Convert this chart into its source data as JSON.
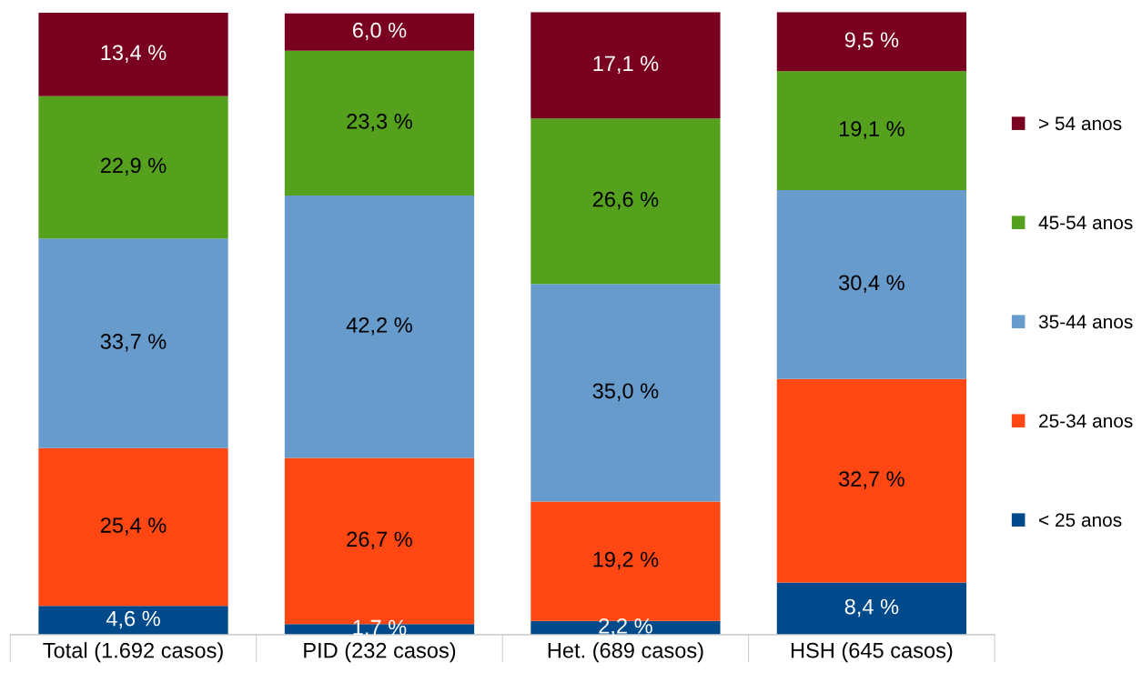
{
  "chart_data": {
    "type": "bar",
    "stacked": true,
    "legend": "right",
    "grid": false,
    "tick_labels": "x",
    "categories": [
      "Total (1.692 casos)",
      "PID (232 casos)",
      "Het. (689 casos)",
      "HSH (645 casos)"
    ],
    "series": [
      {
        "name": "< 25 anos",
        "color": "#004a8c",
        "values": [
          4.6,
          1.7,
          2.2,
          8.4
        ],
        "value_labels": [
          "4,6 %",
          "1,7 %",
          "2,2 %",
          "8,4 %"
        ]
      },
      {
        "name": "25-34 anos",
        "color": "#ff4713",
        "values": [
          25.4,
          26.7,
          19.2,
          32.7
        ],
        "value_labels": [
          "25,4 %",
          "26,7 %",
          "19,2 %",
          "32,7 %"
        ]
      },
      {
        "name": "35-44 anos",
        "color": "#669bcc",
        "values": [
          33.7,
          42.2,
          35.0,
          30.4
        ],
        "value_labels": [
          "33,7 %",
          "42,2 %",
          "35,0 %",
          "30,4 %"
        ]
      },
      {
        "name": "45-54 anos",
        "color": "#55a01c",
        "values": [
          22.9,
          23.3,
          26.6,
          19.1
        ],
        "value_labels": [
          "22,9 %",
          "23,3 %",
          "26,6 %",
          "19,1 %"
        ]
      },
      {
        "name": "> 54 anos",
        "color": "#7a0020",
        "values": [
          13.4,
          6.0,
          17.1,
          9.5
        ],
        "value_labels": [
          "13,4 %",
          "6,0 %",
          "17,1 %",
          "9,5 %"
        ]
      }
    ]
  }
}
